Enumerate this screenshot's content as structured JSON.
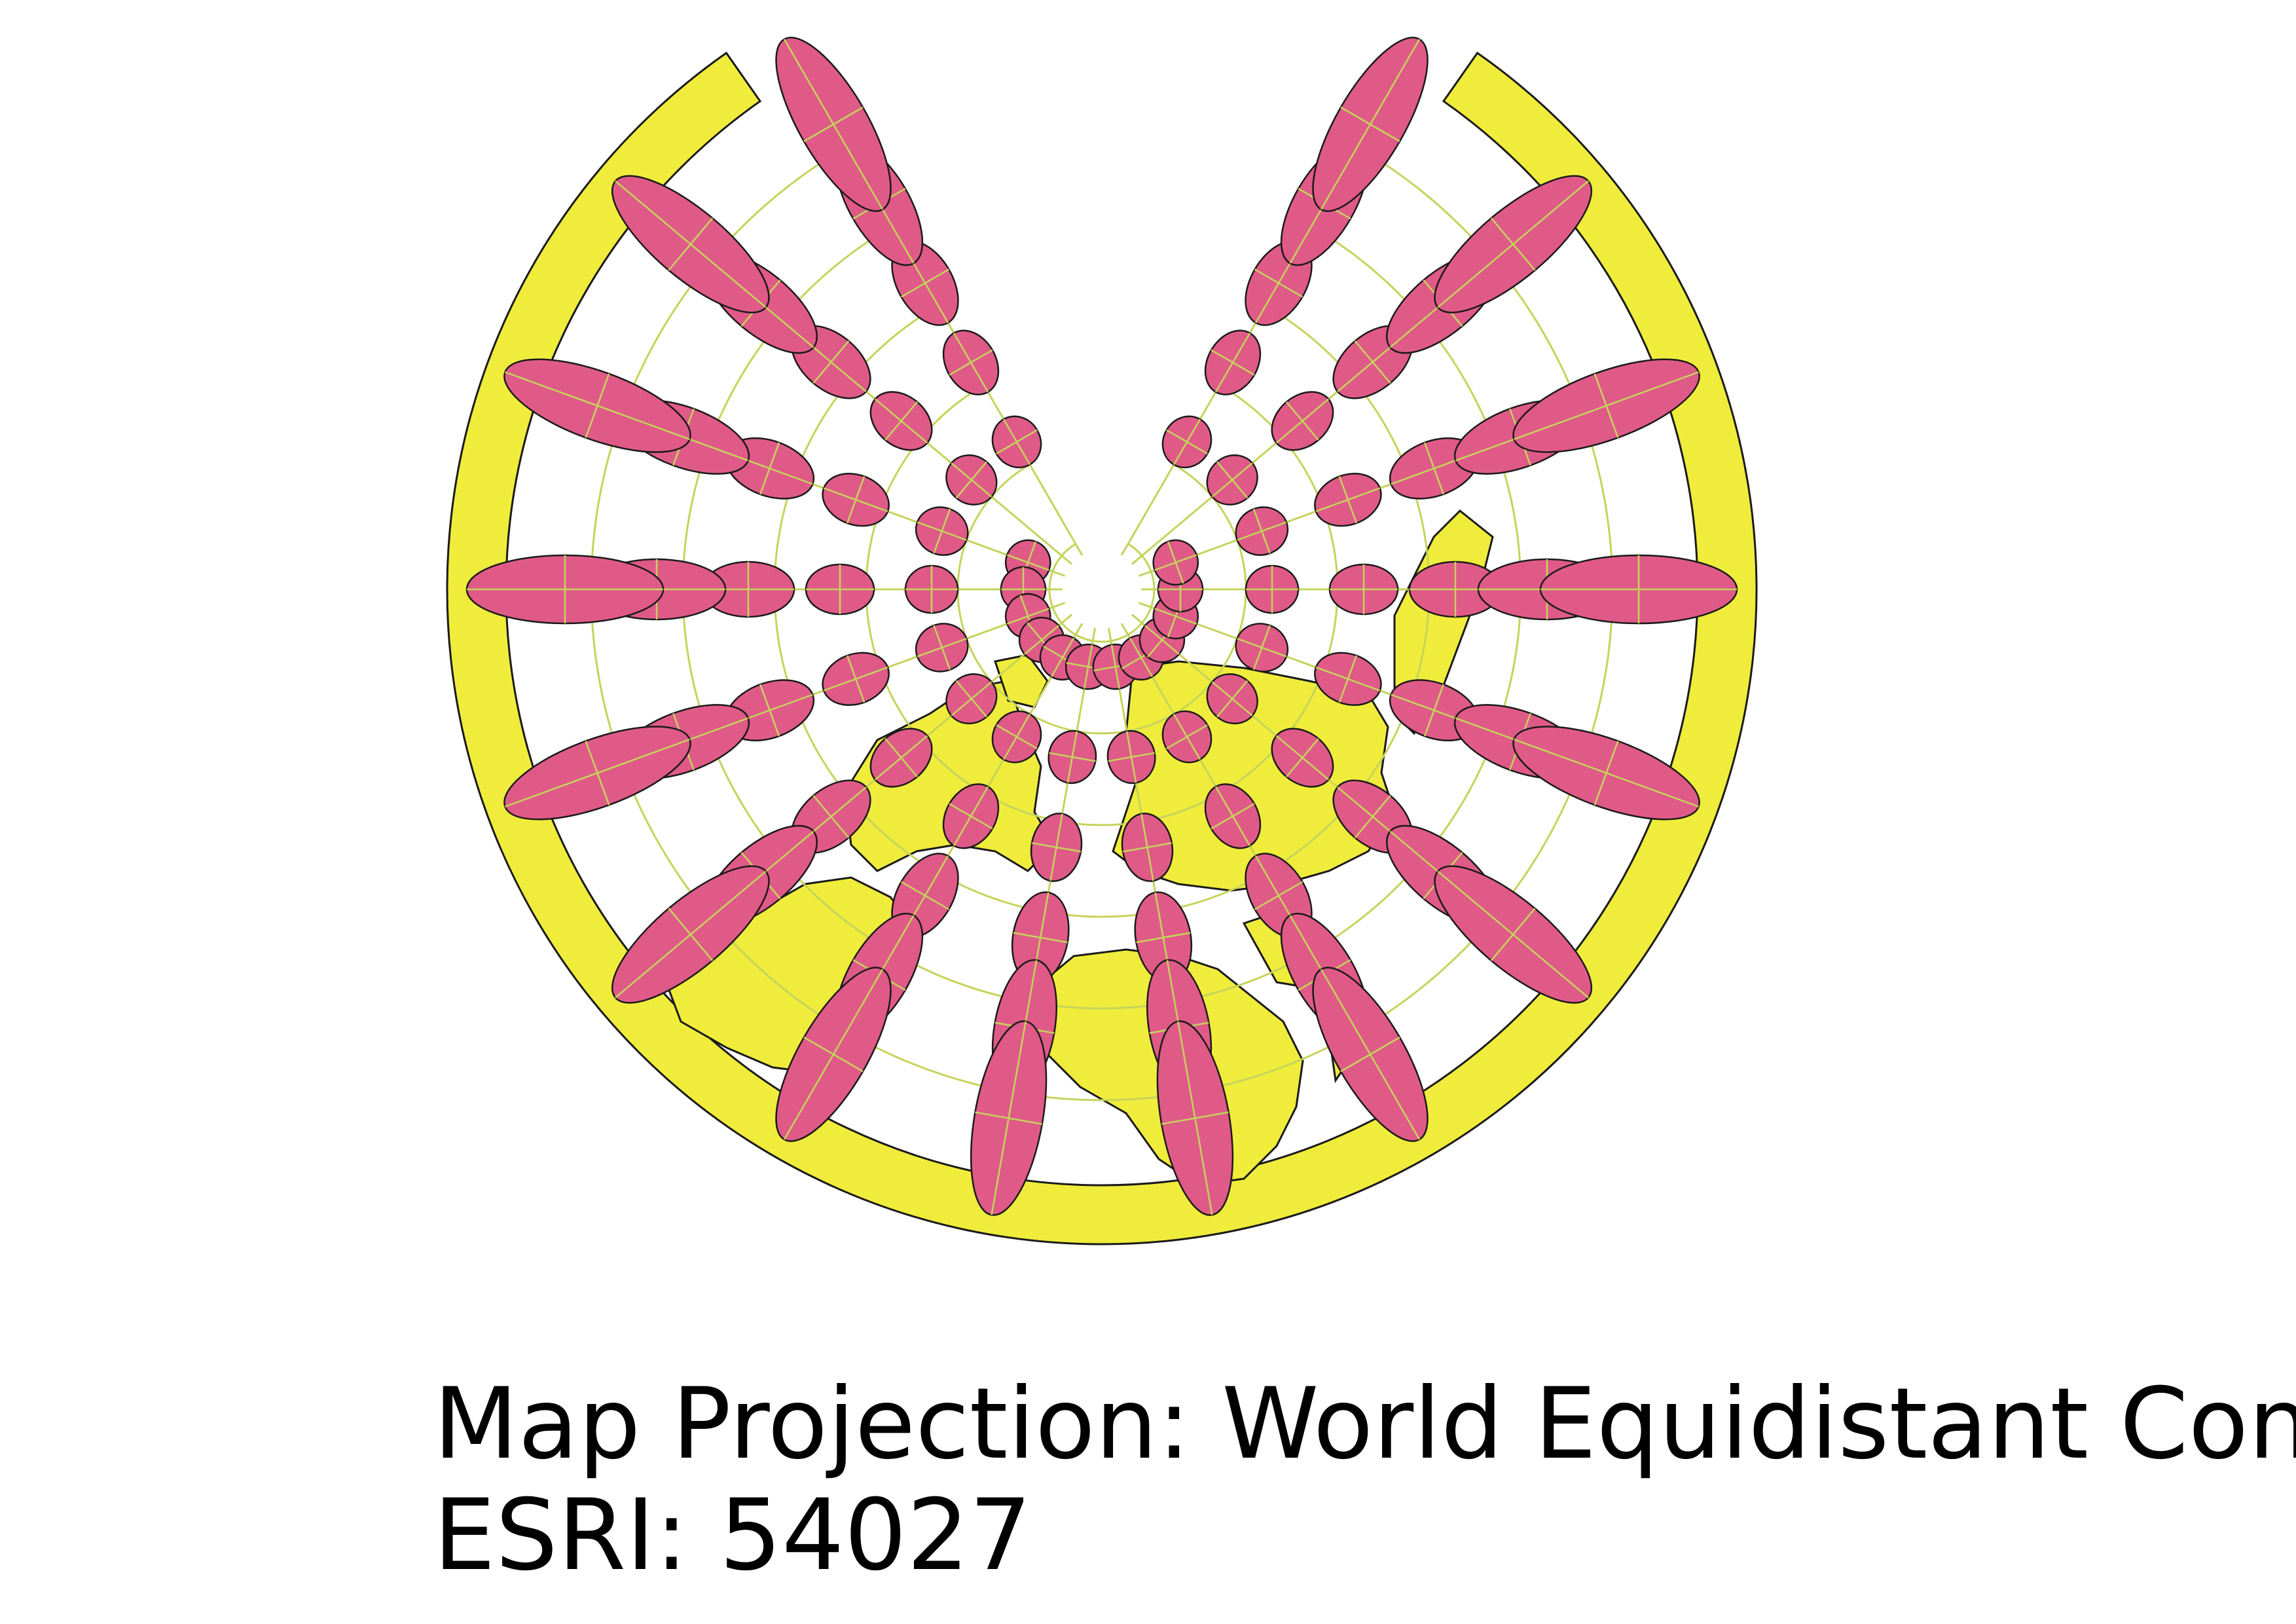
{
  "caption": {
    "title": "Map Projection: World Equidistant Conic",
    "code": "ESRI: 54027"
  },
  "map": {
    "projection": "World Equidistant Conic",
    "esri_code": "54027",
    "overlay": "Tissot indicatrix",
    "colors": {
      "land": "#f0ec3c",
      "ellipse": "#e05a88",
      "graticule": "#c5d45a",
      "outline": "#1a1a1a",
      "background": "#ffffff"
    }
  }
}
